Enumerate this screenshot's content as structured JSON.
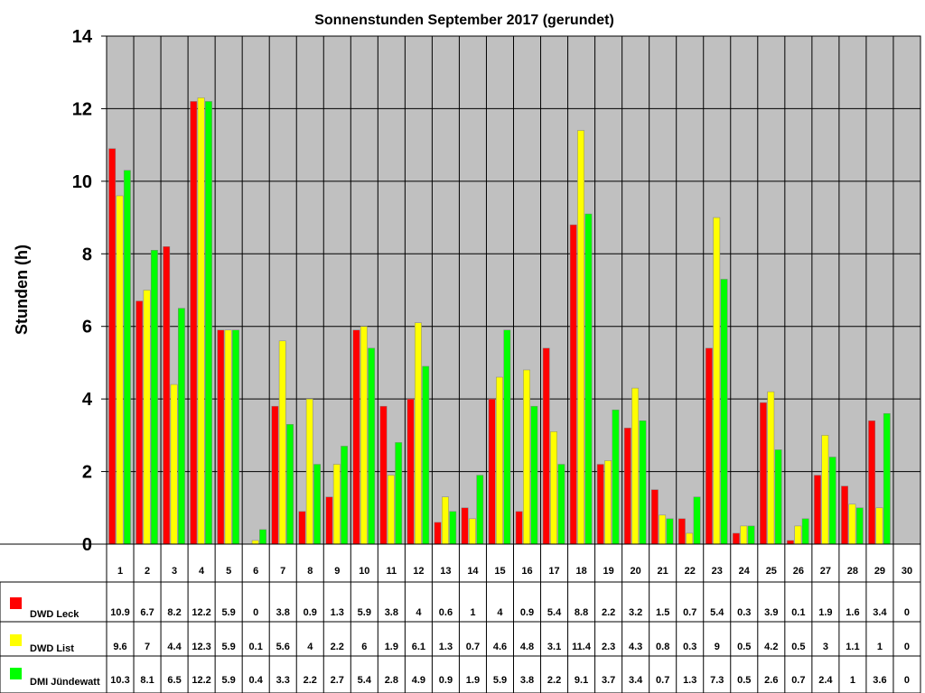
{
  "chart_data": {
    "type": "bar",
    "title": "Sonnenstunden September 2017 (gerundet)",
    "ylabel": "Stunden (h)",
    "xlabel": "",
    "ylim": [
      0,
      14
    ],
    "yticks": [
      "0",
      "2",
      "4",
      "6",
      "8",
      "10",
      "12",
      "14"
    ],
    "grid": true,
    "legend": "data-table",
    "categories": [
      "1",
      "2",
      "3",
      "4",
      "5",
      "6",
      "7",
      "8",
      "9",
      "10",
      "11",
      "12",
      "13",
      "14",
      "15",
      "16",
      "17",
      "18",
      "19",
      "20",
      "21",
      "22",
      "23",
      "24",
      "25",
      "26",
      "27",
      "28",
      "29",
      "30"
    ],
    "series": [
      {
        "name": "DWD Leck",
        "color": "#ff0000",
        "values": [
          10.9,
          6.7,
          8.2,
          12.2,
          5.9,
          0,
          3.8,
          0.9,
          1.3,
          5.9,
          3.8,
          4,
          0.6,
          1,
          4,
          0.9,
          5.4,
          8.8,
          2.2,
          3.2,
          1.5,
          0.7,
          5.4,
          0.3,
          3.9,
          0.1,
          1.9,
          1.6,
          3.4,
          0
        ],
        "labels": [
          "10.9",
          "6.7",
          "8.2",
          "12.2",
          "5.9",
          "0",
          "3.8",
          "0.9",
          "1.3",
          "5.9",
          "3.8",
          "4",
          "0.6",
          "1",
          "4",
          "0.9",
          "5.4",
          "8.8",
          "2.2",
          "3.2",
          "1.5",
          "0.7",
          "5.4",
          "0.3",
          "3.9",
          "0.1",
          "1.9",
          "1.6",
          "3.4",
          "0"
        ]
      },
      {
        "name": "DWD List",
        "color": "#ffff00",
        "values": [
          9.6,
          7,
          4.4,
          12.3,
          5.9,
          0.1,
          5.6,
          4,
          2.2,
          6,
          1.9,
          6.1,
          1.3,
          0.7,
          4.6,
          4.8,
          3.1,
          11.4,
          2.3,
          4.3,
          0.8,
          0.3,
          9,
          0.5,
          4.2,
          0.5,
          3,
          1.1,
          1,
          0
        ],
        "labels": [
          "9.6",
          "7",
          "4.4",
          "12.3",
          "5.9",
          "0.1",
          "5.6",
          "4",
          "2.2",
          "6",
          "1.9",
          "6.1",
          "1.3",
          "0.7",
          "4.6",
          "4.8",
          "3.1",
          "11.4",
          "2.3",
          "4.3",
          "0.8",
          "0.3",
          "9",
          "0.5",
          "4.2",
          "0.5",
          "3",
          "1.1",
          "1",
          "0"
        ]
      },
      {
        "name": "DMI Jündewatt",
        "color": "#00ff00",
        "values": [
          10.3,
          8.1,
          6.5,
          12.2,
          5.9,
          0.4,
          3.3,
          2.2,
          2.7,
          5.4,
          2.8,
          4.9,
          0.9,
          1.9,
          5.9,
          3.8,
          2.2,
          9.1,
          3.7,
          3.4,
          0.7,
          1.3,
          7.3,
          0.5,
          2.6,
          0.7,
          2.4,
          1,
          3.6,
          0
        ],
        "labels": [
          "10.3",
          "8.1",
          "6.5",
          "12.2",
          "5.9",
          "0.4",
          "3.3",
          "2.2",
          "2.7",
          "5.4",
          "2.8",
          "4.9",
          "0.9",
          "1.9",
          "5.9",
          "3.8",
          "2.2",
          "9.1",
          "3.7",
          "3.4",
          "0.7",
          "1.3",
          "7.3",
          "0.5",
          "2.6",
          "0.7",
          "2.4",
          "1",
          "3.6",
          "0"
        ]
      }
    ],
    "colors": {
      "plot_background": "#c0c0c0",
      "gridline": "#000000",
      "bar_outline": "#808080"
    }
  }
}
